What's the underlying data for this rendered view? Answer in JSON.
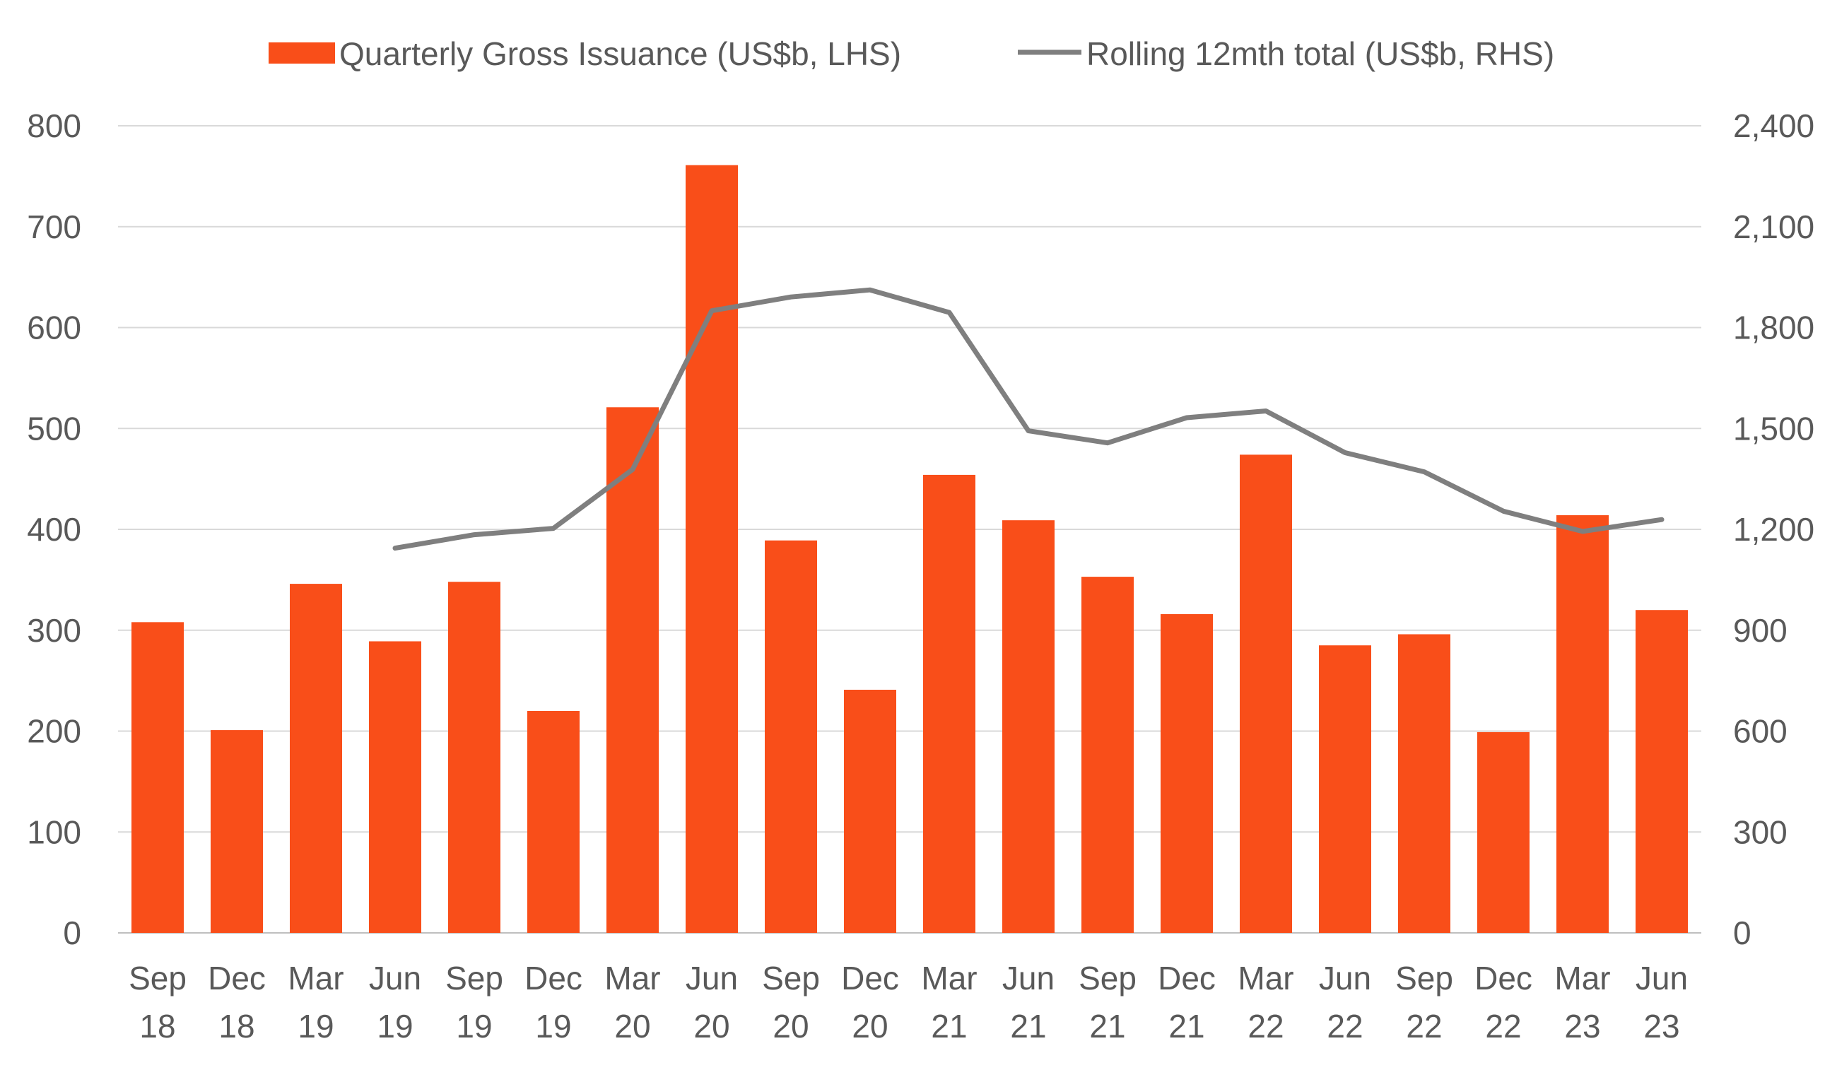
{
  "chart_data": {
    "type": "bar",
    "categories": [
      [
        "Sep",
        "18"
      ],
      [
        "Dec",
        "18"
      ],
      [
        "Mar",
        "19"
      ],
      [
        "Jun",
        "19"
      ],
      [
        "Sep",
        "19"
      ],
      [
        "Dec",
        "19"
      ],
      [
        "Mar",
        "20"
      ],
      [
        "Jun",
        "20"
      ],
      [
        "Sep",
        "20"
      ],
      [
        "Dec",
        "20"
      ],
      [
        "Mar",
        "21"
      ],
      [
        "Jun",
        "21"
      ],
      [
        "Sep",
        "21"
      ],
      [
        "Dec",
        "21"
      ],
      [
        "Mar",
        "22"
      ],
      [
        "Jun",
        "22"
      ],
      [
        "Sep",
        "22"
      ],
      [
        "Dec",
        "22"
      ],
      [
        "Mar",
        "23"
      ],
      [
        "Jun",
        "23"
      ]
    ],
    "series": [
      {
        "name": "Quarterly Gross Issuance (US$b, LHS)",
        "type": "bar",
        "axis": "left",
        "color": "#F94E19",
        "values": [
          308,
          201,
          346,
          289,
          348,
          220,
          521,
          761,
          389,
          241,
          454,
          409,
          353,
          316,
          474,
          285,
          296,
          199,
          414,
          320
        ]
      },
      {
        "name": "Rolling 12mth total (US$b, RHS)",
        "type": "line",
        "axis": "right",
        "color": "#7F7F7F",
        "values": [
          null,
          null,
          null,
          1144,
          1184,
          1203,
          1378,
          1850,
          1891,
          1912,
          1845,
          1493,
          1457,
          1532,
          1552,
          1428,
          1371,
          1254,
          1194,
          1229
        ]
      }
    ],
    "y_left": {
      "min": 0,
      "max": 800,
      "ticks": [
        "0",
        "100",
        "200",
        "300",
        "400",
        "500",
        "600",
        "700",
        "800"
      ]
    },
    "y_right": {
      "min": 0,
      "max": 2400,
      "ticks": [
        "0",
        "300",
        "600",
        "900",
        "1,200",
        "1,500",
        "1,800",
        "2,100",
        "2,400"
      ]
    },
    "grid": true,
    "legend_position": "top-center"
  }
}
